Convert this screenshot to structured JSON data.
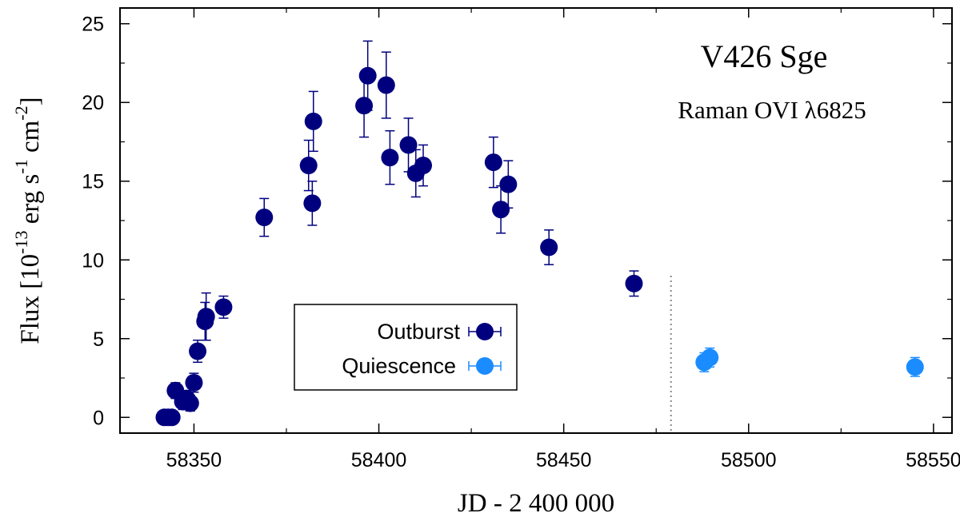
{
  "chart_data": {
    "type": "scatter",
    "title": "V426 Sge",
    "subtitle": "Raman OVI λ6825",
    "xlabel": "JD - 2 400 000",
    "ylabel": {
      "prefix": "Flux [10",
      "exp1": "-13",
      "mid1": " erg s",
      "exp2": "-1",
      "mid2": " cm",
      "exp3": "-2",
      "suffix": "]"
    },
    "xlim": [
      58330,
      58555
    ],
    "ylim": [
      -1,
      26
    ],
    "xticks": [
      58350,
      58400,
      58450,
      58500,
      58550
    ],
    "xtick_labels": [
      "58350",
      "58400",
      "58450",
      "58500",
      "58550"
    ],
    "yticks": [
      0,
      5,
      10,
      15,
      20,
      25
    ],
    "ytick_labels": [
      "0",
      "5",
      "10",
      "15",
      "20",
      "25"
    ],
    "vline_x": 58479,
    "legend_placement": "lower-center",
    "series": [
      {
        "name": "Outburst",
        "color": "#00007f",
        "points": [
          {
            "x": 58342,
            "y": 0.0,
            "err": 0.0
          },
          {
            "x": 58343,
            "y": 0.0,
            "err": 0.0
          },
          {
            "x": 58344,
            "y": 0.0,
            "err": 0.0
          },
          {
            "x": 58345,
            "y": 1.7,
            "err": 0.5
          },
          {
            "x": 58347,
            "y": 1.0,
            "err": 0.5
          },
          {
            "x": 58348,
            "y": 1.2,
            "err": 0.5
          },
          {
            "x": 58349,
            "y": 0.9,
            "err": 0.5
          },
          {
            "x": 58350,
            "y": 2.2,
            "err": 0.6
          },
          {
            "x": 58351,
            "y": 4.2,
            "err": 0.7
          },
          {
            "x": 58353,
            "y": 6.1,
            "err": 1.2
          },
          {
            "x": 58353.3,
            "y": 6.4,
            "err": 1.5
          },
          {
            "x": 58358,
            "y": 7.0,
            "err": 0.7
          },
          {
            "x": 58369,
            "y": 12.7,
            "err": 1.2
          },
          {
            "x": 58381,
            "y": 16.0,
            "err": 1.6
          },
          {
            "x": 58382,
            "y": 13.6,
            "err": 1.4
          },
          {
            "x": 58382.3,
            "y": 18.8,
            "err": 1.9
          },
          {
            "x": 58396,
            "y": 19.8,
            "err": 2.0
          },
          {
            "x": 58397,
            "y": 21.7,
            "err": 2.2
          },
          {
            "x": 58402,
            "y": 21.1,
            "err": 2.1
          },
          {
            "x": 58403,
            "y": 16.5,
            "err": 1.7
          },
          {
            "x": 58408,
            "y": 17.3,
            "err": 1.7
          },
          {
            "x": 58410,
            "y": 15.5,
            "err": 1.5
          },
          {
            "x": 58412,
            "y": 16.0,
            "err": 1.3
          },
          {
            "x": 58431,
            "y": 16.2,
            "err": 1.6
          },
          {
            "x": 58433,
            "y": 13.2,
            "err": 1.5
          },
          {
            "x": 58435,
            "y": 14.8,
            "err": 1.5
          },
          {
            "x": 58446,
            "y": 10.8,
            "err": 1.1
          },
          {
            "x": 58469,
            "y": 8.5,
            "err": 0.8
          }
        ]
      },
      {
        "name": "Quiescence",
        "color": "#1a8cff",
        "points": [
          {
            "x": 58488,
            "y": 3.5,
            "err": 0.6
          },
          {
            "x": 58489.5,
            "y": 3.8,
            "err": 0.6
          },
          {
            "x": 58545,
            "y": 3.2,
            "err": 0.6
          }
        ]
      }
    ]
  }
}
